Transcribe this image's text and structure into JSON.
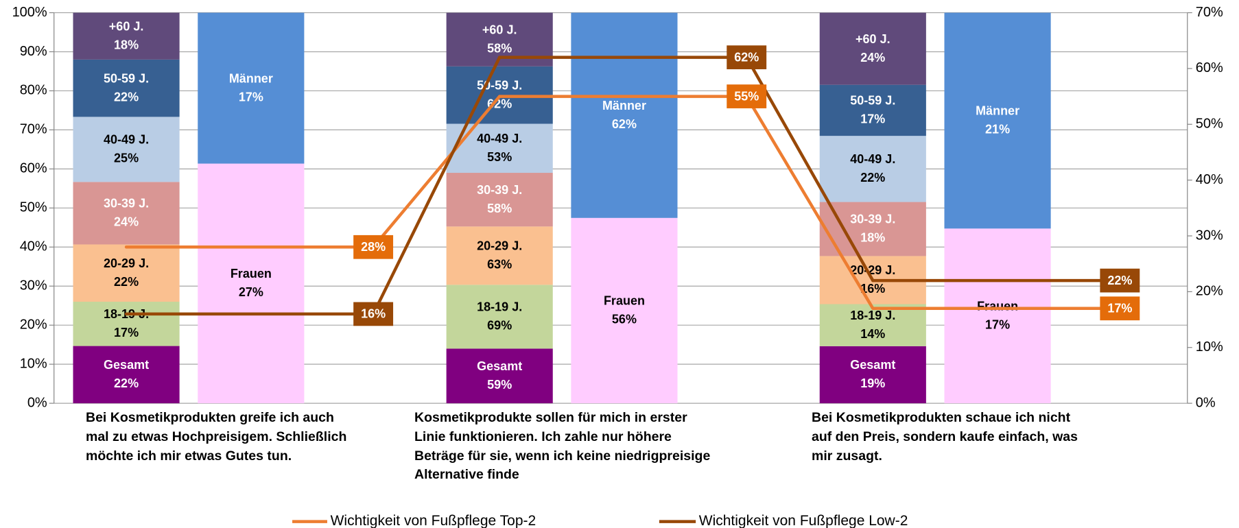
{
  "chart_data": {
    "type": "bar",
    "stacked": true,
    "categories": [
      "Bei Kosmetikprodukten greife ich auch mal zu etwas Hochpreisigem. Schließlich möchte ich mir etwas Gutes tun.",
      "Kosmetikprodukte sollen für mich in erster Linie funktionieren. Ich zahle nur höhere Beträge für sie, wenn ich keine niedrigpreisige Alternative finde",
      "Bei Kosmetikprodukten schaue ich nicht auf den Preis, sondern kaufe einfach, was mir zusagt."
    ],
    "ylim": [
      0,
      100
    ],
    "yticks": [
      {
        "value": 0,
        "label": "0%"
      },
      {
        "value": 10,
        "label": "10%"
      },
      {
        "value": 20,
        "label": "20%"
      },
      {
        "value": 30,
        "label": "30%"
      },
      {
        "value": 40,
        "label": "40%"
      },
      {
        "value": 50,
        "label": "50%"
      },
      {
        "value": 60,
        "label": "60%"
      },
      {
        "value": 70,
        "label": "70%"
      },
      {
        "value": 80,
        "label": "80%"
      },
      {
        "value": 90,
        "label": "90%"
      },
      {
        "value": 100,
        "label": "100%"
      }
    ],
    "y2lim": [
      0,
      70
    ],
    "y2ticks": [
      {
        "value": 0,
        "label": "0%"
      },
      {
        "value": 10,
        "label": "10%"
      },
      {
        "value": 20,
        "label": "20%"
      },
      {
        "value": 30,
        "label": "30%"
      },
      {
        "value": 40,
        "label": "40%"
      },
      {
        "value": 50,
        "label": "50%"
      },
      {
        "value": 60,
        "label": "60%"
      },
      {
        "value": 70,
        "label": "70%"
      }
    ],
    "grid": true,
    "bar_groups": [
      {
        "series": [
          {
            "name": "Gesamt",
            "color": "#800080",
            "text_color": "#ffffff",
            "values": [
              22,
              59,
              19
            ],
            "value_labels": [
              "22%",
              "59%",
              "19%"
            ]
          },
          {
            "name": "18-19 J.",
            "color": "#c3d69b",
            "text_color": "#000000",
            "values": [
              17,
              69,
              14
            ],
            "value_labels": [
              "17%",
              "69%",
              "14%"
            ]
          },
          {
            "name": "20-29 J.",
            "color": "#fac090",
            "text_color": "#000000",
            "values": [
              22,
              63,
              16
            ],
            "value_labels": [
              "22%",
              "63%",
              "16%"
            ]
          },
          {
            "name": "30-39 J.",
            "color": "#d99694",
            "text_color": "#ffffff",
            "values": [
              24,
              58,
              18
            ],
            "value_labels": [
              "24%",
              "58%",
              "18%"
            ]
          },
          {
            "name": "40-49 J.",
            "color": "#b9cde5",
            "text_color": "#000000",
            "values": [
              25,
              53,
              22
            ],
            "value_labels": [
              "25%",
              "53%",
              "22%"
            ]
          },
          {
            "name": "50-59 J.",
            "color": "#376092",
            "text_color": "#ffffff",
            "values": [
              22,
              62,
              17
            ],
            "value_labels": [
              "22%",
              "62%",
              "17%"
            ]
          },
          {
            "name": "+60 J.",
            "color": "#604a7b",
            "text_color": "#ffffff",
            "values": [
              18,
              58,
              24
            ],
            "value_labels": [
              "18%",
              "58%",
              "24%"
            ]
          }
        ]
      },
      {
        "series": [
          {
            "name": "Frauen",
            "color": "#ffccff",
            "text_color": "#000000",
            "values": [
              27,
              56,
              17
            ],
            "value_labels": [
              "27%",
              "56%",
              "17%"
            ]
          },
          {
            "name": "Männer",
            "color": "#558ed5",
            "text_color": "#ffffff",
            "values": [
              17,
              62,
              21
            ],
            "value_labels": [
              "17%",
              "62%",
              "21%"
            ]
          }
        ]
      }
    ],
    "line_series": [
      {
        "name": "Wichtigkeit von Fußpflege Top-2",
        "color": "#ed7d31",
        "label_color": "#e46c0a",
        "axis": "y2",
        "values": [
          28,
          55,
          17
        ],
        "value_labels": [
          "28%",
          "55%",
          "17%"
        ]
      },
      {
        "name": "Wichtigkeit von Fußpflege Low-2",
        "color": "#984807",
        "label_color": "#984807",
        "axis": "y2",
        "values": [
          16,
          62,
          22
        ],
        "value_labels": [
          "16%",
          "62%",
          "22%"
        ]
      }
    ],
    "legend": "bottom"
  }
}
